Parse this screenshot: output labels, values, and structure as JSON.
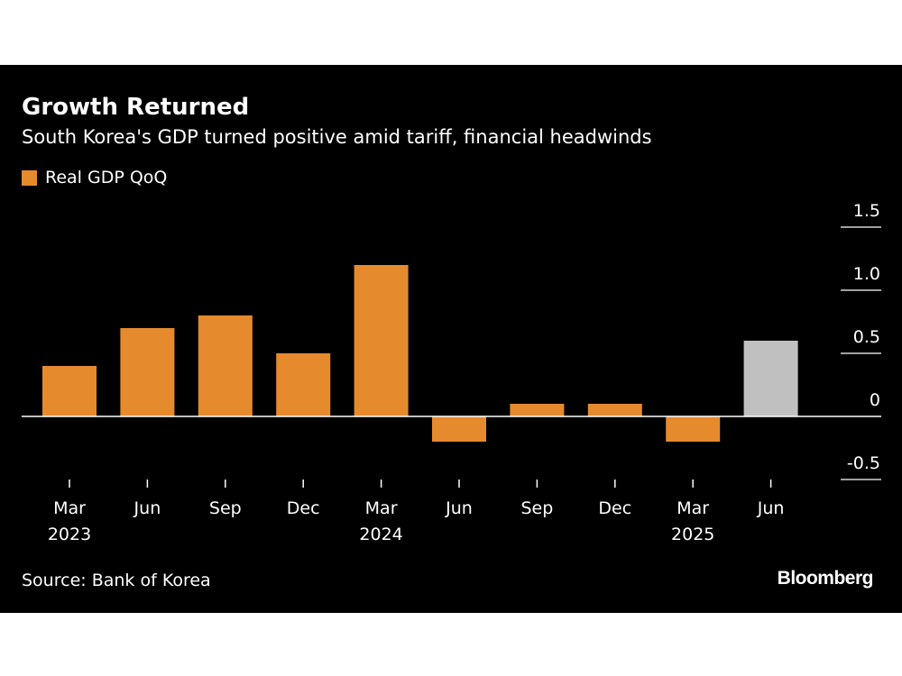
{
  "header": {
    "title": "Growth Returned",
    "subtitle": "South Korea's GDP turned positive amid tariff, financial headwinds"
  },
  "footer": {
    "source": "Source: Bank of Korea",
    "brand": "Bloomberg"
  },
  "colors": {
    "background": "#000000",
    "bar": "#E68A2E",
    "bar_latest": "#C0C0C0",
    "text": "#FFFFFF"
  },
  "chart_data": {
    "type": "bar",
    "title": "Growth Returned",
    "subtitle": "South Korea's GDP turned positive amid tariff, financial headwinds",
    "legend": [
      {
        "name": "Real GDP QoQ",
        "color": "#E68A2E"
      }
    ],
    "categories": [
      "Mar 2023",
      "Jun 2023",
      "Sep 2023",
      "Dec 2023",
      "Mar 2024",
      "Jun 2024",
      "Sep 2024",
      "Dec 2024",
      "Mar 2025",
      "Jun 2025"
    ],
    "x_tick_labels": [
      {
        "month": "Mar",
        "year": "2023"
      },
      {
        "month": "Jun",
        "year": ""
      },
      {
        "month": "Sep",
        "year": ""
      },
      {
        "month": "Dec",
        "year": ""
      },
      {
        "month": "Mar",
        "year": "2024"
      },
      {
        "month": "Jun",
        "year": ""
      },
      {
        "month": "Sep",
        "year": ""
      },
      {
        "month": "Dec",
        "year": ""
      },
      {
        "month": "Mar",
        "year": "2025"
      },
      {
        "month": "Jun",
        "year": ""
      }
    ],
    "series": [
      {
        "name": "Real GDP QoQ",
        "values": [
          0.4,
          0.7,
          0.8,
          0.5,
          1.2,
          -0.2,
          0.1,
          0.1,
          -0.2,
          0.6
        ]
      }
    ],
    "highlight_index": 9,
    "ylim": [
      -0.5,
      1.5
    ],
    "y_ticks": [
      1.5,
      1.0,
      0.5,
      0,
      -0.5
    ],
    "y_tick_labels": [
      "1.5",
      "1.0",
      "0.5",
      "0",
      "-0.5"
    ],
    "y_axis_position": "right",
    "xlabel": "",
    "ylabel": "",
    "grid": false
  }
}
